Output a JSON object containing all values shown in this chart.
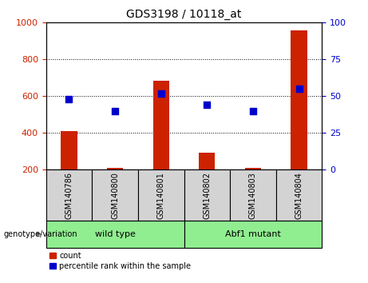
{
  "title": "GDS3198 / 10118_at",
  "samples": [
    "GSM140786",
    "GSM140800",
    "GSM140801",
    "GSM140802",
    "GSM140803",
    "GSM140804"
  ],
  "bar_values": [
    410,
    212,
    685,
    295,
    212,
    960
  ],
  "percentile_values": [
    48,
    40,
    52,
    44,
    40,
    55
  ],
  "bar_color": "#cc2200",
  "dot_color": "#0000cc",
  "ylim_left": [
    200,
    1000
  ],
  "ylim_right": [
    0,
    100
  ],
  "yticks_left": [
    200,
    400,
    600,
    800,
    1000
  ],
  "yticks_right": [
    0,
    25,
    50,
    75,
    100
  ],
  "groups": [
    {
      "label": "wild type",
      "indices": [
        0,
        1,
        2
      ]
    },
    {
      "label": "Abf1 mutant",
      "indices": [
        3,
        4,
        5
      ]
    }
  ],
  "genotype_label": "genotype/variation",
  "legend_count": "count",
  "legend_percentile": "percentile rank within the sample",
  "sample_box_color": "#d3d3d3",
  "group_box_color": "#90ee90",
  "bar_width": 0.35
}
